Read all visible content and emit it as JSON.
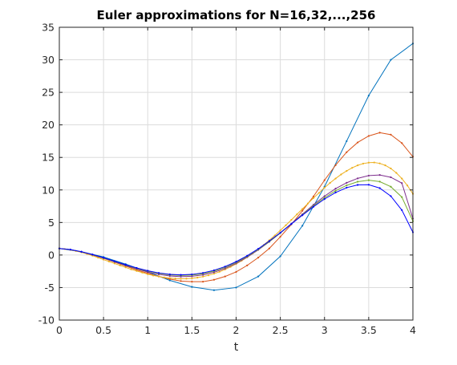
{
  "chart_data": {
    "type": "line",
    "title": "Euler approximations for N=16,32,...,256",
    "xlabel": "t",
    "ylabel": "",
    "xlim": [
      0,
      4
    ],
    "ylim": [
      -10,
      35
    ],
    "xticks": [
      0,
      0.5,
      1,
      1.5,
      2,
      2.5,
      3,
      3.5,
      4
    ],
    "xtick_labels": [
      "0",
      "0.5",
      "1",
      "1.5",
      "2",
      "2.5",
      "3",
      "3.5",
      "4"
    ],
    "yticks": [
      -10,
      -5,
      0,
      5,
      10,
      15,
      20,
      25,
      30,
      35
    ],
    "ytick_labels": [
      "-10",
      "-5",
      "0",
      "5",
      "10",
      "15",
      "20",
      "25",
      "30",
      "35"
    ],
    "grid": true,
    "legend": "none",
    "series": [
      {
        "color": "#0072BD",
        "x": [
          0,
          0.25,
          0.5,
          0.75,
          1,
          1.25,
          1.5,
          1.75,
          2,
          2.25,
          2.5,
          2.75,
          3,
          3.25,
          3.5,
          3.75,
          4
        ],
        "y": [
          1,
          0.5,
          -0.3,
          -1.4,
          -2.6,
          -3.9,
          -4.9,
          -5.4,
          -5.0,
          -3.3,
          -0.2,
          4.5,
          10.5,
          17.5,
          24.5,
          30.0,
          32.5
        ]
      },
      {
        "color": "#D95319",
        "x": [
          0,
          0.125,
          0.25,
          0.375,
          0.5,
          0.625,
          0.75,
          0.875,
          1,
          1.125,
          1.25,
          1.375,
          1.5,
          1.625,
          1.75,
          1.875,
          2,
          2.125,
          2.25,
          2.375,
          2.5,
          2.625,
          2.75,
          2.875,
          3,
          3.125,
          3.25,
          3.375,
          3.5,
          3.625,
          3.75,
          3.875,
          4
        ],
        "y": [
          1,
          0.8,
          0.45,
          0.0,
          -0.5,
          -1.1,
          -1.7,
          -2.3,
          -2.8,
          -3.3,
          -3.7,
          -4.0,
          -4.1,
          -4.1,
          -3.8,
          -3.3,
          -2.6,
          -1.6,
          -0.4,
          1.0,
          2.8,
          4.7,
          6.8,
          9.0,
          11.5,
          13.8,
          15.8,
          17.3,
          18.3,
          18.8,
          18.5,
          17.2,
          15.1
        ]
      },
      {
        "color": "#EDB120",
        "x": [
          0,
          0.0625,
          0.125,
          0.1875,
          0.25,
          0.3125,
          0.375,
          0.4375,
          0.5,
          0.5625,
          0.625,
          0.6875,
          0.75,
          0.8125,
          0.875,
          0.9375,
          1,
          1.0625,
          1.125,
          1.1875,
          1.25,
          1.3125,
          1.375,
          1.4375,
          1.5,
          1.5625,
          1.625,
          1.6875,
          1.75,
          1.8125,
          1.875,
          1.9375,
          2,
          2.0625,
          2.125,
          2.1875,
          2.25,
          2.3125,
          2.375,
          2.4375,
          2.5,
          2.5625,
          2.625,
          2.6875,
          2.75,
          2.8125,
          2.875,
          2.9375,
          3,
          3.0625,
          3.125,
          3.1875,
          3.25,
          3.3125,
          3.375,
          3.4375,
          3.5,
          3.5625,
          3.625,
          3.6875,
          3.75,
          3.8125,
          3.875,
          3.9375,
          4
        ],
        "y": [
          1,
          0.92,
          0.8,
          0.62,
          0.42,
          0.17,
          -0.1,
          -0.4,
          -0.7,
          -1.0,
          -1.3,
          -1.6,
          -1.9,
          -2.2,
          -2.45,
          -2.7,
          -2.95,
          -3.15,
          -3.3,
          -3.45,
          -3.55,
          -3.62,
          -3.65,
          -3.63,
          -3.57,
          -3.47,
          -3.32,
          -3.12,
          -2.87,
          -2.57,
          -2.22,
          -1.82,
          -1.38,
          -0.88,
          -0.34,
          0.25,
          0.88,
          1.55,
          2.26,
          3.0,
          3.78,
          4.58,
          5.4,
          6.24,
          7.08,
          7.92,
          8.75,
          9.55,
          10.35,
          11.08,
          11.75,
          12.38,
          12.92,
          13.4,
          13.78,
          14.05,
          14.2,
          14.22,
          14.08,
          13.78,
          13.3,
          12.62,
          11.75,
          10.68,
          9.4
        ]
      },
      {
        "color": "#7E2F8E",
        "x": [
          0,
          0.125,
          0.25,
          0.375,
          0.5,
          0.625,
          0.75,
          0.875,
          1,
          1.125,
          1.25,
          1.375,
          1.5,
          1.625,
          1.75,
          1.875,
          2,
          2.125,
          2.25,
          2.375,
          2.5,
          2.625,
          2.75,
          2.875,
          3,
          3.125,
          3.25,
          3.375,
          3.5,
          3.625,
          3.75,
          3.875,
          4
        ],
        "y": [
          1,
          0.83,
          0.48,
          0.03,
          -0.48,
          -1.05,
          -1.62,
          -2.15,
          -2.62,
          -2.98,
          -3.22,
          -3.32,
          -3.27,
          -3.05,
          -2.65,
          -2.06,
          -1.28,
          -0.33,
          0.78,
          2.02,
          3.38,
          4.82,
          6.28,
          7.72,
          9.05,
          10.2,
          11.1,
          11.78,
          12.2,
          12.3,
          11.95,
          11.05,
          5.6
        ]
      },
      {
        "color": "#77AC30",
        "x": [
          0,
          0.125,
          0.25,
          0.375,
          0.5,
          0.625,
          0.75,
          0.875,
          1,
          1.125,
          1.25,
          1.375,
          1.5,
          1.625,
          1.75,
          1.875,
          2,
          2.125,
          2.25,
          2.375,
          2.5,
          2.625,
          2.75,
          2.875,
          3,
          3.125,
          3.25,
          3.375,
          3.5,
          3.625,
          3.75,
          3.875,
          4
        ],
        "y": [
          1,
          0.84,
          0.5,
          0.06,
          -0.44,
          -0.99,
          -1.54,
          -2.05,
          -2.48,
          -2.82,
          -3.05,
          -3.14,
          -3.08,
          -2.86,
          -2.47,
          -1.9,
          -1.15,
          -0.23,
          0.85,
          2.06,
          3.38,
          4.77,
          6.18,
          7.55,
          8.8,
          9.87,
          10.7,
          11.27,
          11.5,
          11.28,
          10.5,
          8.9,
          5.2
        ]
      },
      {
        "color": "#0000FF",
        "x": [
          0,
          0.125,
          0.25,
          0.375,
          0.5,
          0.625,
          0.75,
          0.875,
          1,
          1.125,
          1.25,
          1.375,
          1.5,
          1.625,
          1.75,
          1.875,
          2,
          2.125,
          2.25,
          2.375,
          2.5,
          2.625,
          2.75,
          2.875,
          3,
          3.125,
          3.25,
          3.375,
          3.5,
          3.625,
          3.75,
          3.875,
          4
        ],
        "y": [
          1,
          0.84,
          0.51,
          0.08,
          -0.41,
          -0.95,
          -1.49,
          -1.99,
          -2.42,
          -2.75,
          -2.97,
          -3.05,
          -2.98,
          -2.75,
          -2.35,
          -1.78,
          -1.03,
          -0.12,
          0.95,
          2.14,
          3.43,
          4.77,
          6.12,
          7.42,
          8.6,
          9.6,
          10.35,
          10.77,
          10.8,
          10.28,
          9.05,
          6.9,
          3.5
        ]
      }
    ]
  }
}
